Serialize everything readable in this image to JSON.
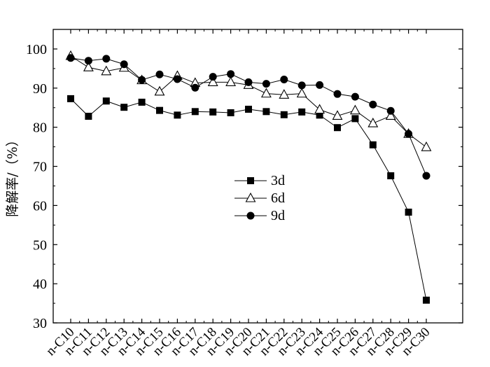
{
  "chart_data": {
    "type": "line",
    "ylabel": "降解率/（%）",
    "xlabel": "",
    "ylim": [
      30,
      105
    ],
    "yticks": [
      30,
      40,
      50,
      60,
      70,
      80,
      90,
      100
    ],
    "legend_position": "center",
    "categories": [
      "n-C10",
      "n-C11",
      "n-C12",
      "n-C13",
      "n-C14",
      "n-C15",
      "n-C16",
      "n-C17",
      "n-C18",
      "n-C19",
      "n-C20",
      "n-C21",
      "n-C22",
      "n-C23",
      "n-C24",
      "n-C25",
      "n-C26",
      "n-C27",
      "n-C28",
      "n-C29",
      "n-C30"
    ],
    "series": [
      {
        "name": "3d",
        "marker": "filled-square",
        "values": [
          87.3,
          82.8,
          86.7,
          85.1,
          86.4,
          84.3,
          83.1,
          84.0,
          83.9,
          83.7,
          84.6,
          84.0,
          83.2,
          83.9,
          83.1,
          79.9,
          82.2,
          75.5,
          67.6,
          58.3,
          35.8
        ]
      },
      {
        "name": "6d",
        "marker": "open-triangle",
        "values": [
          98.2,
          95.3,
          94.3,
          95.2,
          92.0,
          89.1,
          93.1,
          91.3,
          91.5,
          91.5,
          90.8,
          88.6,
          88.3,
          88.6,
          84.5,
          82.9,
          84.3,
          81.0,
          82.9,
          78.3,
          74.9
        ]
      },
      {
        "name": "9d",
        "marker": "filled-circle",
        "values": [
          97.7,
          97.0,
          97.5,
          96.1,
          92.1,
          93.5,
          92.3,
          90.1,
          92.9,
          93.6,
          91.5,
          91.1,
          92.2,
          90.7,
          90.8,
          88.5,
          87.8,
          85.8,
          84.2,
          78.3,
          67.6
        ]
      }
    ]
  }
}
